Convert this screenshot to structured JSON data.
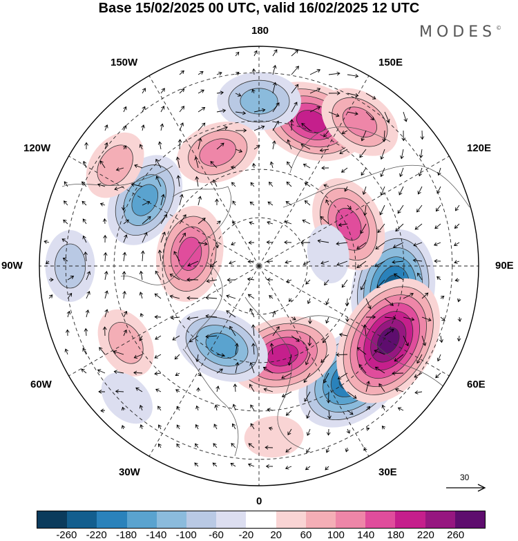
{
  "title": "Base 15/02/2025 00 UTC, valid 16/02/2025 12 UTC",
  "brand": "MODES",
  "brand_mark": "©",
  "longitude_labels": {
    "top": "180",
    "bottom": "0",
    "left": "90W",
    "right": "90E",
    "upper_left_1": "150W",
    "upper_left_2": "120W",
    "upper_right_1": "150E",
    "upper_right_2": "120E",
    "lower_left_1": "60W",
    "lower_left_2": "30W",
    "lower_right_1": "60E",
    "lower_right_2": "30E"
  },
  "reference_vector_label": "30",
  "colorbar": {
    "colors": [
      "#0b3b5c",
      "#135e8e",
      "#2a82bb",
      "#5aa3cf",
      "#8bbbdc",
      "#b9c9e4",
      "#dcdef0",
      "#ffffff",
      "#f9d4d4",
      "#f4aeb6",
      "#ee86a8",
      "#e04d9c",
      "#c51f8c",
      "#961780",
      "#5e0d6e"
    ],
    "tick_labels": [
      "-260",
      "-220",
      "-180",
      "-140",
      "-100",
      "-60",
      "-20",
      "20",
      "60",
      "100",
      "140",
      "180",
      "220",
      "260"
    ]
  },
  "anomaly_centers": [
    {
      "lon": 80,
      "r": 0.62,
      "level": -220
    },
    {
      "lon": 40,
      "r": 0.66,
      "level": -220
    },
    {
      "lon": 60,
      "r": 0.68,
      "level": 260
    },
    {
      "lon": 15,
      "r": 0.42,
      "level": 200
    },
    {
      "lon": 160,
      "r": 0.7,
      "level": 180
    },
    {
      "lon": 180,
      "r": 0.75,
      "level": -120
    },
    {
      "lon": 145,
      "r": 0.8,
      "level": 100
    },
    {
      "lon": 115,
      "r": 0.45,
      "level": 140
    },
    {
      "lon": -120,
      "r": 0.6,
      "level": -140
    },
    {
      "lon": -160,
      "r": 0.55,
      "level": 100
    },
    {
      "lon": -100,
      "r": 0.32,
      "level": 160
    },
    {
      "lon": -25,
      "r": 0.4,
      "level": -160
    },
    {
      "lon": -60,
      "r": 0.7,
      "level": 80
    },
    {
      "lon": -125,
      "r": 0.8,
      "level": 60
    },
    {
      "lon": -90,
      "r": 0.86,
      "level": -60
    },
    {
      "lon": 100,
      "r": 0.32,
      "level": -40
    },
    {
      "lon": -45,
      "r": 0.85,
      "level": -40
    },
    {
      "lon": 5,
      "r": 0.78,
      "level": 40
    }
  ]
}
